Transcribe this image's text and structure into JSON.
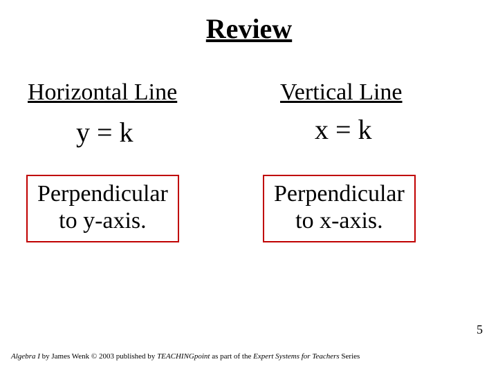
{
  "title": "Review",
  "left": {
    "heading": "Horizontal Line",
    "equation": "y = k",
    "perp_line1": "Perpendicular",
    "perp_line2": "to y-axis."
  },
  "right": {
    "heading": "Vertical Line",
    "equation": "x = k",
    "perp_line1": "Perpendicular",
    "perp_line2": "to x-axis."
  },
  "box_border_color": "#c00000",
  "page_number": "5",
  "footer": {
    "part1_italic": "Algebra I",
    "part2_plain": " by James Wenk © 2003 published by ",
    "part3_italic": "TEACHINGpoint",
    "part4_plain": " as part of the ",
    "part5_italic": "Expert Systems for Teachers",
    "part6_plain": " Series"
  }
}
